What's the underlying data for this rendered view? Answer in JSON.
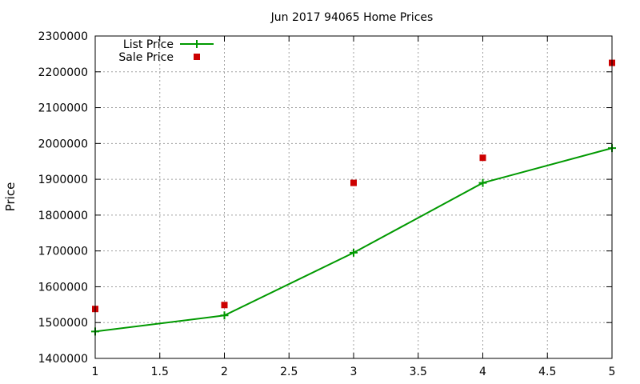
{
  "chart_data": {
    "type": "line",
    "title": "Jun 2017 94065 Home Prices",
    "xlabel": "",
    "ylabel": "Price",
    "xlim": [
      1,
      5
    ],
    "ylim": [
      1400000,
      2300000
    ],
    "x_ticks": [
      1,
      1.5,
      2,
      2.5,
      3,
      3.5,
      4,
      4.5,
      5
    ],
    "x_tick_labels": [
      "1",
      "1.5",
      "2",
      "2.5",
      "3",
      "3.5",
      "4",
      "4.5",
      "5"
    ],
    "y_ticks": [
      1400000,
      1500000,
      1600000,
      1700000,
      1800000,
      1900000,
      2000000,
      2100000,
      2200000,
      2300000
    ],
    "y_tick_labels": [
      "1400000",
      "1500000",
      "1600000",
      "1700000",
      "1800000",
      "1900000",
      "2000000",
      "2100000",
      "2200000",
      "2300000"
    ],
    "grid": true,
    "legend_position": "top-left",
    "series": [
      {
        "name": "List Price",
        "style": "line-with-plus-markers",
        "color": "#009900",
        "x": [
          1,
          2,
          3,
          4,
          5
        ],
        "values": [
          1475000,
          1520000,
          1695000,
          1890000,
          1987000
        ]
      },
      {
        "name": "Sale Price",
        "style": "square-markers",
        "color": "#cc0000",
        "x": [
          1,
          2,
          3,
          4,
          5
        ],
        "values": [
          1538000,
          1549000,
          1890000,
          1960000,
          2225000
        ]
      }
    ]
  }
}
